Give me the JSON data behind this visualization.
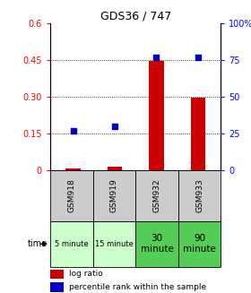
{
  "title": "GDS36 / 747",
  "samples": [
    "GSM918",
    "GSM919",
    "GSM932",
    "GSM933"
  ],
  "time_labels": [
    "5 minute",
    "15 minute",
    "30\nminute",
    "90\nminute"
  ],
  "time_bg_colors": [
    "#ccffcc",
    "#ccffcc",
    "#55cc55",
    "#55cc55"
  ],
  "log_ratio": [
    0.005,
    0.012,
    0.445,
    0.295
  ],
  "percentile_rank": [
    0.27,
    0.3,
    0.77,
    0.77
  ],
  "bar_color": "#cc0000",
  "dot_color": "#0000cc",
  "left_ylim": [
    0,
    0.6
  ],
  "right_ylim": [
    0,
    1.0
  ],
  "left_yticks": [
    0,
    0.15,
    0.3,
    0.45,
    0.6
  ],
  "left_yticklabels": [
    "0",
    "0.15",
    "0.30",
    "0.45",
    "0.6"
  ],
  "right_yticks": [
    0,
    0.25,
    0.5,
    0.75,
    1.0
  ],
  "right_yticklabels": [
    "0",
    "25",
    "50",
    "75",
    "100%"
  ],
  "hlines": [
    0.15,
    0.3,
    0.45
  ],
  "bar_width": 0.35,
  "dot_size": 22,
  "sample_bg_color": "#cccccc",
  "legend_red_label": "log ratio",
  "legend_blue_label": "percentile rank within the sample",
  "figwidth": 2.8,
  "figheight": 3.27,
  "dpi": 100
}
